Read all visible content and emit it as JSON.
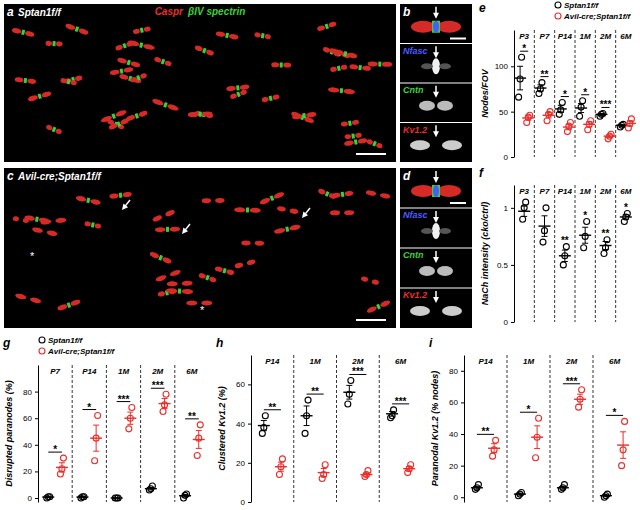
{
  "image_panels": [
    {
      "label": "a",
      "genotype": "Sptan1f/f",
      "stain": [
        {
          "text": "Caspr",
          "color": "#e8302c"
        },
        {
          "text": "βIV spectrin",
          "color": "#3ad23a"
        }
      ]
    },
    {
      "label": "b",
      "channels": [
        {
          "text": "Nfasc",
          "color": "#4a5cff"
        },
        {
          "text": "Cntn",
          "color": "#3ad23a"
        },
        {
          "text": "Kv1.2",
          "color": "#e8302c"
        }
      ]
    },
    {
      "label": "c",
      "genotype": "Avil-cre;Sptan1f/f",
      "annotations": [
        "*",
        "*"
      ]
    },
    {
      "label": "d",
      "channels": [
        {
          "text": "Nfasc",
          "color": "#4a5cff"
        },
        {
          "text": "Cntn",
          "color": "#3ad23a"
        },
        {
          "text": "Kv1.2",
          "color": "#e8302c"
        }
      ]
    }
  ],
  "chart_data": [
    {
      "type": "dot",
      "panel_label": "e",
      "ylabel": "Nodes/FOV",
      "categories": [
        "P3",
        "P7",
        "P14",
        "1M",
        "2M",
        "6M"
      ],
      "ylim": [
        0,
        140
      ],
      "yticks": [
        0,
        50,
        100
      ],
      "legend": "top right",
      "series": [
        {
          "name": "Sptan1f/f",
          "color": "#000000",
          "points": [
            [
              66,
              86,
              110
            ],
            [
              70,
              75,
              82
            ],
            [
              47,
              52,
              60
            ],
            [
              45,
              55,
              62
            ],
            [
              45,
              47,
              48
            ],
            [
              33,
              35,
              36
            ]
          ],
          "mean": [
            87,
            76,
            53,
            54,
            47,
            35
          ],
          "sem": [
            13,
            3.5,
            4,
            5,
            1,
            1
          ]
        },
        {
          "name": "Avil-cre;Sptan1f/f",
          "color": "#e8302c",
          "points": [
            [
              38,
              44,
              46
            ],
            [
              40,
              47,
              50
            ],
            [
              28,
              34,
              38
            ],
            [
              30,
              36,
              40
            ],
            [
              20,
              23,
              25
            ],
            [
              32,
              37,
              42
            ]
          ],
          "mean": [
            43,
            46,
            33,
            36,
            23,
            37
          ],
          "sem": [
            2.5,
            3,
            3,
            3,
            1.5,
            3
          ]
        }
      ],
      "significance": [
        "*",
        "**",
        "*",
        "*",
        "***",
        null
      ]
    },
    {
      "type": "dot",
      "panel_label": "f",
      "ylabel": "NaCh intensity (cko/ctrl)",
      "categories": [
        "P3",
        "P7",
        "P14",
        "1M",
        "2M",
        "6M"
      ],
      "ylim": [
        0,
        1.2
      ],
      "yticks": [
        0,
        0.5,
        1
      ],
      "series": [
        {
          "color": "#000000",
          "points": [
            [
              0.9,
              1.0,
              1.05
            ],
            [
              0.7,
              0.8,
              1.0
            ],
            [
              0.5,
              0.58,
              0.66
            ],
            [
              0.65,
              0.75,
              0.88
            ],
            [
              0.6,
              0.65,
              0.72
            ],
            [
              0.88,
              0.92,
              0.95
            ]
          ],
          "mean": [
            0.97,
            0.84,
            0.58,
            0.76,
            0.67,
            0.92
          ],
          "sem": [
            0.045,
            0.09,
            0.05,
            0.07,
            0.035,
            0.02
          ]
        }
      ],
      "significance": [
        null,
        null,
        "**",
        "*",
        "**",
        "*"
      ]
    },
    {
      "type": "dot",
      "panel_label": "g",
      "ylabel": "Disrupted paranodes (%)",
      "categories": [
        "P7",
        "P14",
        "1M",
        "2M",
        "6M"
      ],
      "ylim": [
        -3,
        100
      ],
      "yticks": [
        0,
        20,
        40,
        60,
        80
      ],
      "legend": "top left",
      "series": [
        {
          "name": "Sptan1f/f",
          "color": "#000000",
          "points": [
            [
              0,
              1,
              1
            ],
            [
              0,
              1,
              1
            ],
            [
              0,
              0,
              0
            ],
            [
              6,
              7,
              9
            ],
            [
              0,
              2,
              3
            ]
          ],
          "mean": [
            0.7,
            0.7,
            0,
            7,
            1.7
          ],
          "sem": [
            0.3,
            0.3,
            0,
            0.9,
            0.9
          ]
        },
        {
          "name": "Avil-cre;Sptan1f/f",
          "color": "#e8302c",
          "points": [
            [
              18,
              22,
              30
            ],
            [
              28,
              45,
              62
            ],
            [
              52,
              60,
              68
            ],
            [
              65,
              70,
              78
            ],
            [
              32,
              45,
              55
            ]
          ],
          "mean": [
            23,
            45,
            60,
            71,
            44
          ],
          "sem": [
            3.5,
            9.8,
            4.6,
            3.8,
            6.7
          ]
        }
      ],
      "significance": [
        "*",
        "*",
        "***",
        "***",
        "**"
      ]
    },
    {
      "type": "dot",
      "panel_label": "h",
      "ylabel": "Clustered Kv1.2 (%)",
      "categories": [
        "P14",
        "1M",
        "2M",
        "6M"
      ],
      "ylim": [
        0,
        75
      ],
      "yticks": [
        0,
        20,
        40,
        60
      ],
      "series": [
        {
          "color": "#000000",
          "points": [
            [
              35,
              38,
              44
            ],
            [
              35,
              44,
              52
            ],
            [
              50,
              55,
              62
            ],
            [
              43,
              44,
              47
            ]
          ],
          "mean": [
            39,
            44,
            56,
            45
          ],
          "sem": [
            2.6,
            5,
            3.5,
            1.2
          ]
        },
        {
          "color": "#e8302c",
          "points": [
            [
              14,
              18,
              22
            ],
            [
              12,
              14,
              19
            ],
            [
              13,
              14,
              16
            ],
            [
              15,
              17,
              19
            ]
          ],
          "mean": [
            18,
            15,
            14,
            17
          ],
          "sem": [
            2.3,
            2.1,
            0.9,
            1.2
          ]
        }
      ],
      "significance": [
        "**",
        "**",
        "***",
        "***"
      ]
    },
    {
      "type": "dot",
      "panel_label": "i",
      "ylabel": "Paranodal Kv1.2 (% nodes)",
      "categories": [
        "P14",
        "1M",
        "2M",
        "6M"
      ],
      "ylim": [
        -3,
        90
      ],
      "yticks": [
        0,
        20,
        40,
        60,
        80
      ],
      "series": [
        {
          "color": "#000000",
          "points": [
            [
              5,
              6,
              8
            ],
            [
              1,
              2,
              3
            ],
            [
              5,
              6,
              8
            ],
            [
              0,
              1,
              2
            ]
          ],
          "mean": [
            6,
            2,
            6,
            1
          ],
          "sem": [
            0.9,
            0.6,
            0.9,
            0.6
          ]
        },
        {
          "color": "#e8302c",
          "points": [
            [
              26,
              30,
              36
            ],
            [
              25,
              38,
              50
            ],
            [
              57,
              62,
              68
            ],
            [
              20,
              30,
              48
            ]
          ],
          "mean": [
            31,
            38,
            62,
            33
          ],
          "sem": [
            2.9,
            7.2,
            3.2,
            8.4
          ]
        }
      ],
      "significance": [
        "**",
        "*",
        "***",
        "*"
      ]
    }
  ]
}
